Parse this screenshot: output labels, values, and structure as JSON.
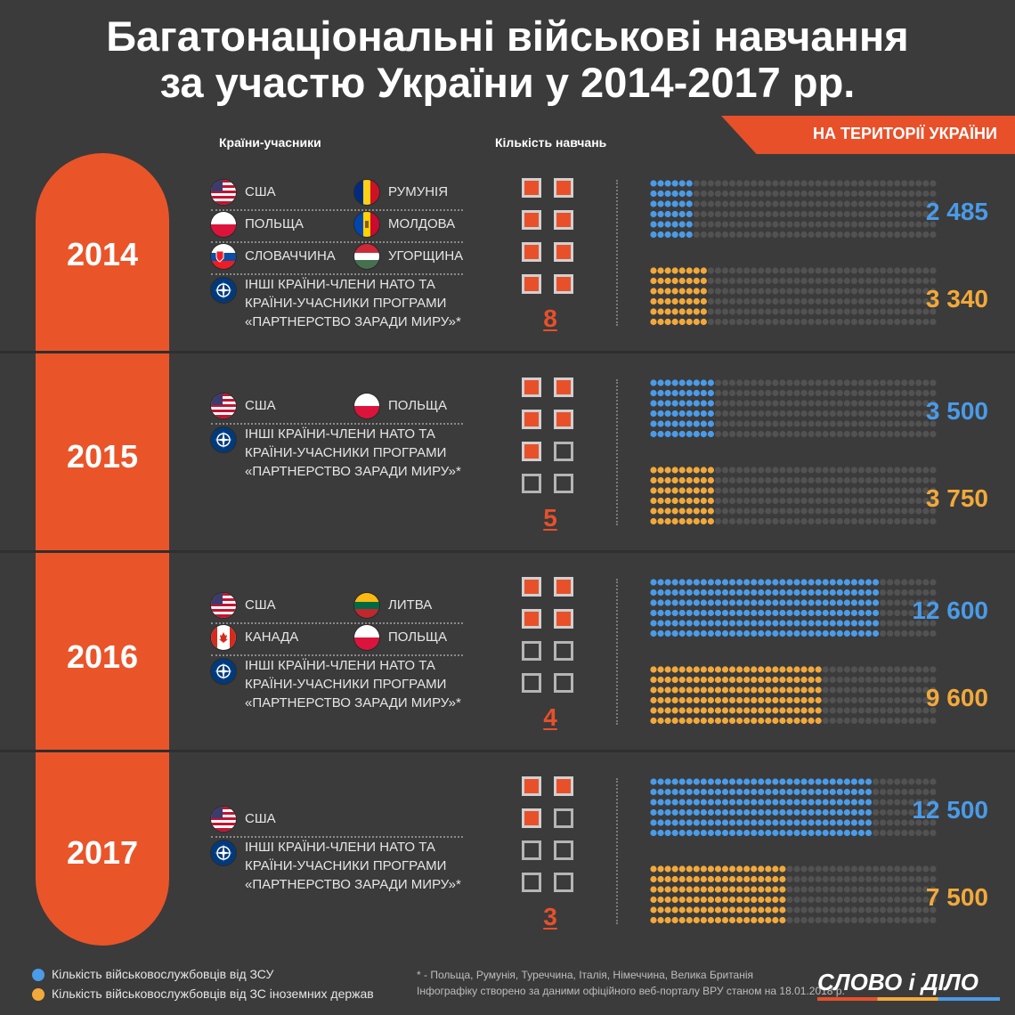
{
  "title": {
    "line1": "Багатонаціональні військові навчання",
    "line2": "за участю України у 2014-2017 рр."
  },
  "headers": {
    "countries": "Країни-учасники",
    "exercises": "Кількість навчань"
  },
  "banner": "НА ТЕРИТОРІЇ УКРАЇНИ",
  "colors": {
    "ukraine": "#4a9be8",
    "foreign": "#f2a93b",
    "accent": "#e8502a",
    "empty_dot": "#525252"
  },
  "nato_text": [
    "ІНШІ КРАЇНИ-ЧЛЕНИ НАТО ТА",
    "КРАЇНИ-УЧАСНИКИ ПРОГРАМИ",
    "«ПАРТНЕРСТВО ЗАРАДИ МИРУ»*"
  ],
  "years": [
    {
      "year": "2014",
      "countries": [
        {
          "name": "США",
          "flag": "usa-flag-icon"
        },
        {
          "name": "РУМУНІЯ",
          "flag": "romania-flag-icon"
        },
        {
          "name": "ПОЛЬЩА",
          "flag": "poland-flag-icon"
        },
        {
          "name": "МОЛДОВА",
          "flag": "moldova-flag-icon"
        },
        {
          "name": "СЛОВАЧЧИНА",
          "flag": "slovakia-flag-icon"
        },
        {
          "name": "УГОРЩИНА",
          "flag": "hungary-flag-icon"
        }
      ],
      "exercises_label": "8"
    },
    {
      "year": "2015",
      "countries": [
        {
          "name": "США",
          "flag": "usa-flag-icon"
        },
        {
          "name": "ПОЛЬЩА",
          "flag": "poland-flag-icon"
        }
      ],
      "exercises_label": "5"
    },
    {
      "year": "2016",
      "countries": [
        {
          "name": "США",
          "flag": "usa-flag-icon"
        },
        {
          "name": "ЛИТВА",
          "flag": "lithuania-flag-icon"
        },
        {
          "name": "КАНАДА",
          "flag": "canada-flag-icon"
        },
        {
          "name": "ПОЛЬЩА",
          "flag": "poland-flag-icon"
        }
      ],
      "exercises_label": "4"
    },
    {
      "year": "2017",
      "countries": [
        {
          "name": "США",
          "flag": "usa-flag-icon"
        }
      ],
      "exercises_label": "3"
    }
  ],
  "chart_data": {
    "type": "bar",
    "categories": [
      "2014",
      "2015",
      "2016",
      "2017"
    ],
    "series": [
      {
        "name": "Кількість військовослужбовців від ЗСУ",
        "values": [
          2485,
          3500,
          12600,
          12500
        ],
        "labels": [
          "2 485",
          "3 500",
          "12 600",
          "12 500"
        ]
      },
      {
        "name": "Кількість військовослужбовців від ЗС іноземних держав",
        "values": [
          3340,
          3750,
          9600,
          7500
        ],
        "labels": [
          "3 340",
          "3 750",
          "9 600",
          "7 500"
        ]
      }
    ],
    "exercises": [
      8,
      5,
      4,
      3
    ]
  },
  "legend": {
    "ukraine": "Кількість військовослужбовців від ЗСУ",
    "foreign": "Кількість військовослужбовців від ЗС іноземних держав"
  },
  "footnote": {
    "line1": "* - Польща, Румунія, Туреччина, Італія, Німеччина, Велика Британія",
    "line2": "Інфографіку створено за даними офіційного веб-порталу ВРУ станом на 18.01.2018 р."
  },
  "logo": "СЛОВО і ДІЛО"
}
